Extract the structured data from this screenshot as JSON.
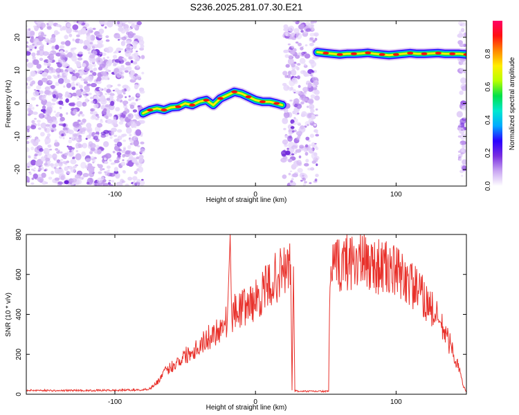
{
  "chart_data": [
    {
      "type": "heatmap",
      "title": "S236.2025.281.07.30.E21",
      "xlabel": "Height of straight line (km)",
      "ylabel": "Frequency (Hz)",
      "xlim": [
        -163,
        150
      ],
      "ylim": [
        -25,
        25
      ],
      "xticks": [
        -100,
        0,
        100
      ],
      "yticks": [
        -20,
        -10,
        0,
        10,
        20
      ],
      "colorbar": {
        "label": "Normalized spectral amplitude",
        "range": [
          0,
          1
        ],
        "ticks": [
          0.0,
          0.2,
          0.4,
          0.6,
          0.8
        ],
        "colormap": [
          "#ffffff",
          "#c9a6f2",
          "#7a2fe0",
          "#2a00ff",
          "#00aaff",
          "#00e8d0",
          "#00e04a",
          "#b8ff00",
          "#ffee00",
          "#ff8800",
          "#ff1010",
          "#ff0066"
        ]
      },
      "noise_regions": [
        {
          "x": [
            -163,
            -80
          ],
          "y": [
            -25,
            25
          ]
        },
        {
          "x": [
            20,
            44
          ],
          "y": [
            -25,
            25
          ]
        },
        {
          "x": [
            145,
            150
          ],
          "y": [
            -25,
            25
          ]
        }
      ],
      "signal_track": {
        "x": [
          -80,
          -75,
          -70,
          -65,
          -60,
          -55,
          -50,
          -45,
          -40,
          -35,
          -30,
          -25,
          -20,
          -15,
          -10,
          -5,
          0,
          5,
          10,
          15,
          19
        ],
        "frequency": [
          -3,
          -2,
          -1.5,
          -2,
          -1.2,
          -1,
          0,
          -0.5,
          0.5,
          1,
          -0.5,
          1.5,
          2.5,
          3.5,
          3,
          2,
          1,
          0.5,
          0.5,
          0,
          -0.5
        ]
      },
      "signal_track_2": {
        "x": [
          44,
          50,
          55,
          60,
          65,
          70,
          75,
          80,
          85,
          90,
          95,
          100,
          105,
          110,
          115,
          120,
          125,
          130,
          135,
          140,
          145,
          150
        ],
        "frequency": [
          15.5,
          15.2,
          15,
          14.8,
          15,
          15,
          15.1,
          15.3,
          15,
          14.8,
          14.6,
          14.8,
          15,
          15.2,
          15,
          15,
          15.1,
          15.2,
          15,
          15,
          15,
          14.8
        ]
      }
    },
    {
      "type": "line",
      "xlabel": "Height of straight line (km)",
      "ylabel": "SNR (10 * v/v)",
      "xlim": [
        -163,
        150
      ],
      "ylim": [
        0,
        800
      ],
      "xticks": [
        -100,
        0,
        100
      ],
      "yticks": [
        0,
        200,
        400,
        600,
        800
      ],
      "color": "#e8302a",
      "x": [
        -163,
        -150,
        -140,
        -130,
        -120,
        -110,
        -100,
        -90,
        -80,
        -75,
        -70,
        -65,
        -60,
        -55,
        -50,
        -45,
        -40,
        -35,
        -30,
        -25,
        -20,
        -18,
        -17,
        -15,
        -10,
        -5,
        0,
        5,
        10,
        15,
        20,
        22,
        25,
        26,
        27,
        28,
        30,
        35,
        40,
        45,
        52,
        53,
        55,
        60,
        65,
        70,
        75,
        80,
        85,
        90,
        95,
        100,
        105,
        110,
        115,
        120,
        125,
        130,
        135,
        140,
        145,
        148,
        150
      ],
      "y": [
        20,
        20,
        18,
        20,
        19,
        20,
        20,
        22,
        22,
        30,
        60,
        110,
        140,
        170,
        200,
        220,
        250,
        280,
        310,
        340,
        380,
        800,
        400,
        420,
        440,
        460,
        480,
        520,
        560,
        600,
        630,
        640,
        650,
        20,
        640,
        20,
        15,
        15,
        15,
        15,
        15,
        620,
        640,
        660,
        680,
        690,
        680,
        670,
        660,
        650,
        640,
        620,
        600,
        570,
        530,
        490,
        440,
        380,
        310,
        230,
        120,
        40,
        10
      ]
    }
  ]
}
